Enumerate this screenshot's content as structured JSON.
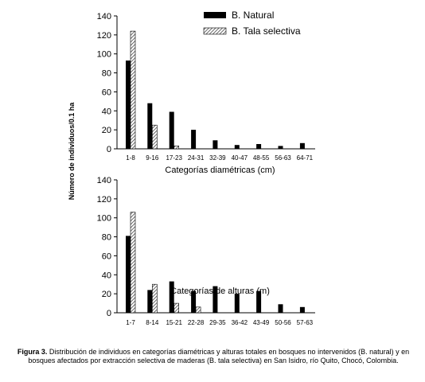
{
  "y_axis_label": "Número de individuos/0.1 ha",
  "legend": {
    "natural": "B. Natural",
    "tala": "B. Tala selectiva"
  },
  "colors": {
    "natural": "#000000",
    "tala_hatch": "#555555",
    "axis": "#000000"
  },
  "caption": {
    "label": "Figura 3.",
    "text": " Distribución de individuos en categorías diamétricas y alturas totales en bosques no intervenidos (B. natural) y en bosques afectados por extracción selectiva de maderas (B. tala selectiva) en San Isidro, río Quito, Chocó, Colombia."
  },
  "chart_data": [
    {
      "type": "bar",
      "xlabel": "Categorías diamétricas (cm)",
      "categories": [
        "1-8",
        "9-16",
        "17-23",
        "24-31",
        "32-39",
        "40-47",
        "48-55",
        "56-63",
        "64-71"
      ],
      "series": [
        {
          "name": "B. Natural",
          "values": [
            93,
            48,
            39,
            20,
            9,
            4,
            5,
            3,
            6
          ]
        },
        {
          "name": "B. Tala selectiva",
          "values": [
            124,
            25,
            3,
            0,
            0,
            0,
            0,
            0,
            0
          ]
        }
      ],
      "ylim": [
        0,
        140
      ],
      "yticks": [
        0,
        20,
        40,
        60,
        80,
        100,
        120,
        140
      ],
      "legend_position": "top-right"
    },
    {
      "type": "bar",
      "xlabel": "Categorías de alturas (m)",
      "categories": [
        "1-7",
        "8-14",
        "15-21",
        "22-28",
        "29-35",
        "36-42",
        "43-49",
        "50-56",
        "57-63"
      ],
      "series": [
        {
          "name": "B. Natural",
          "values": [
            81,
            24,
            33,
            23,
            28,
            20,
            23,
            9,
            6
          ]
        },
        {
          "name": "B. Tala selectiva",
          "values": [
            106,
            30,
            10,
            6,
            0,
            0,
            0,
            0,
            0
          ]
        }
      ],
      "ylim": [
        0,
        140
      ],
      "yticks": [
        0,
        20,
        40,
        60,
        80,
        100,
        120,
        140
      ]
    }
  ]
}
